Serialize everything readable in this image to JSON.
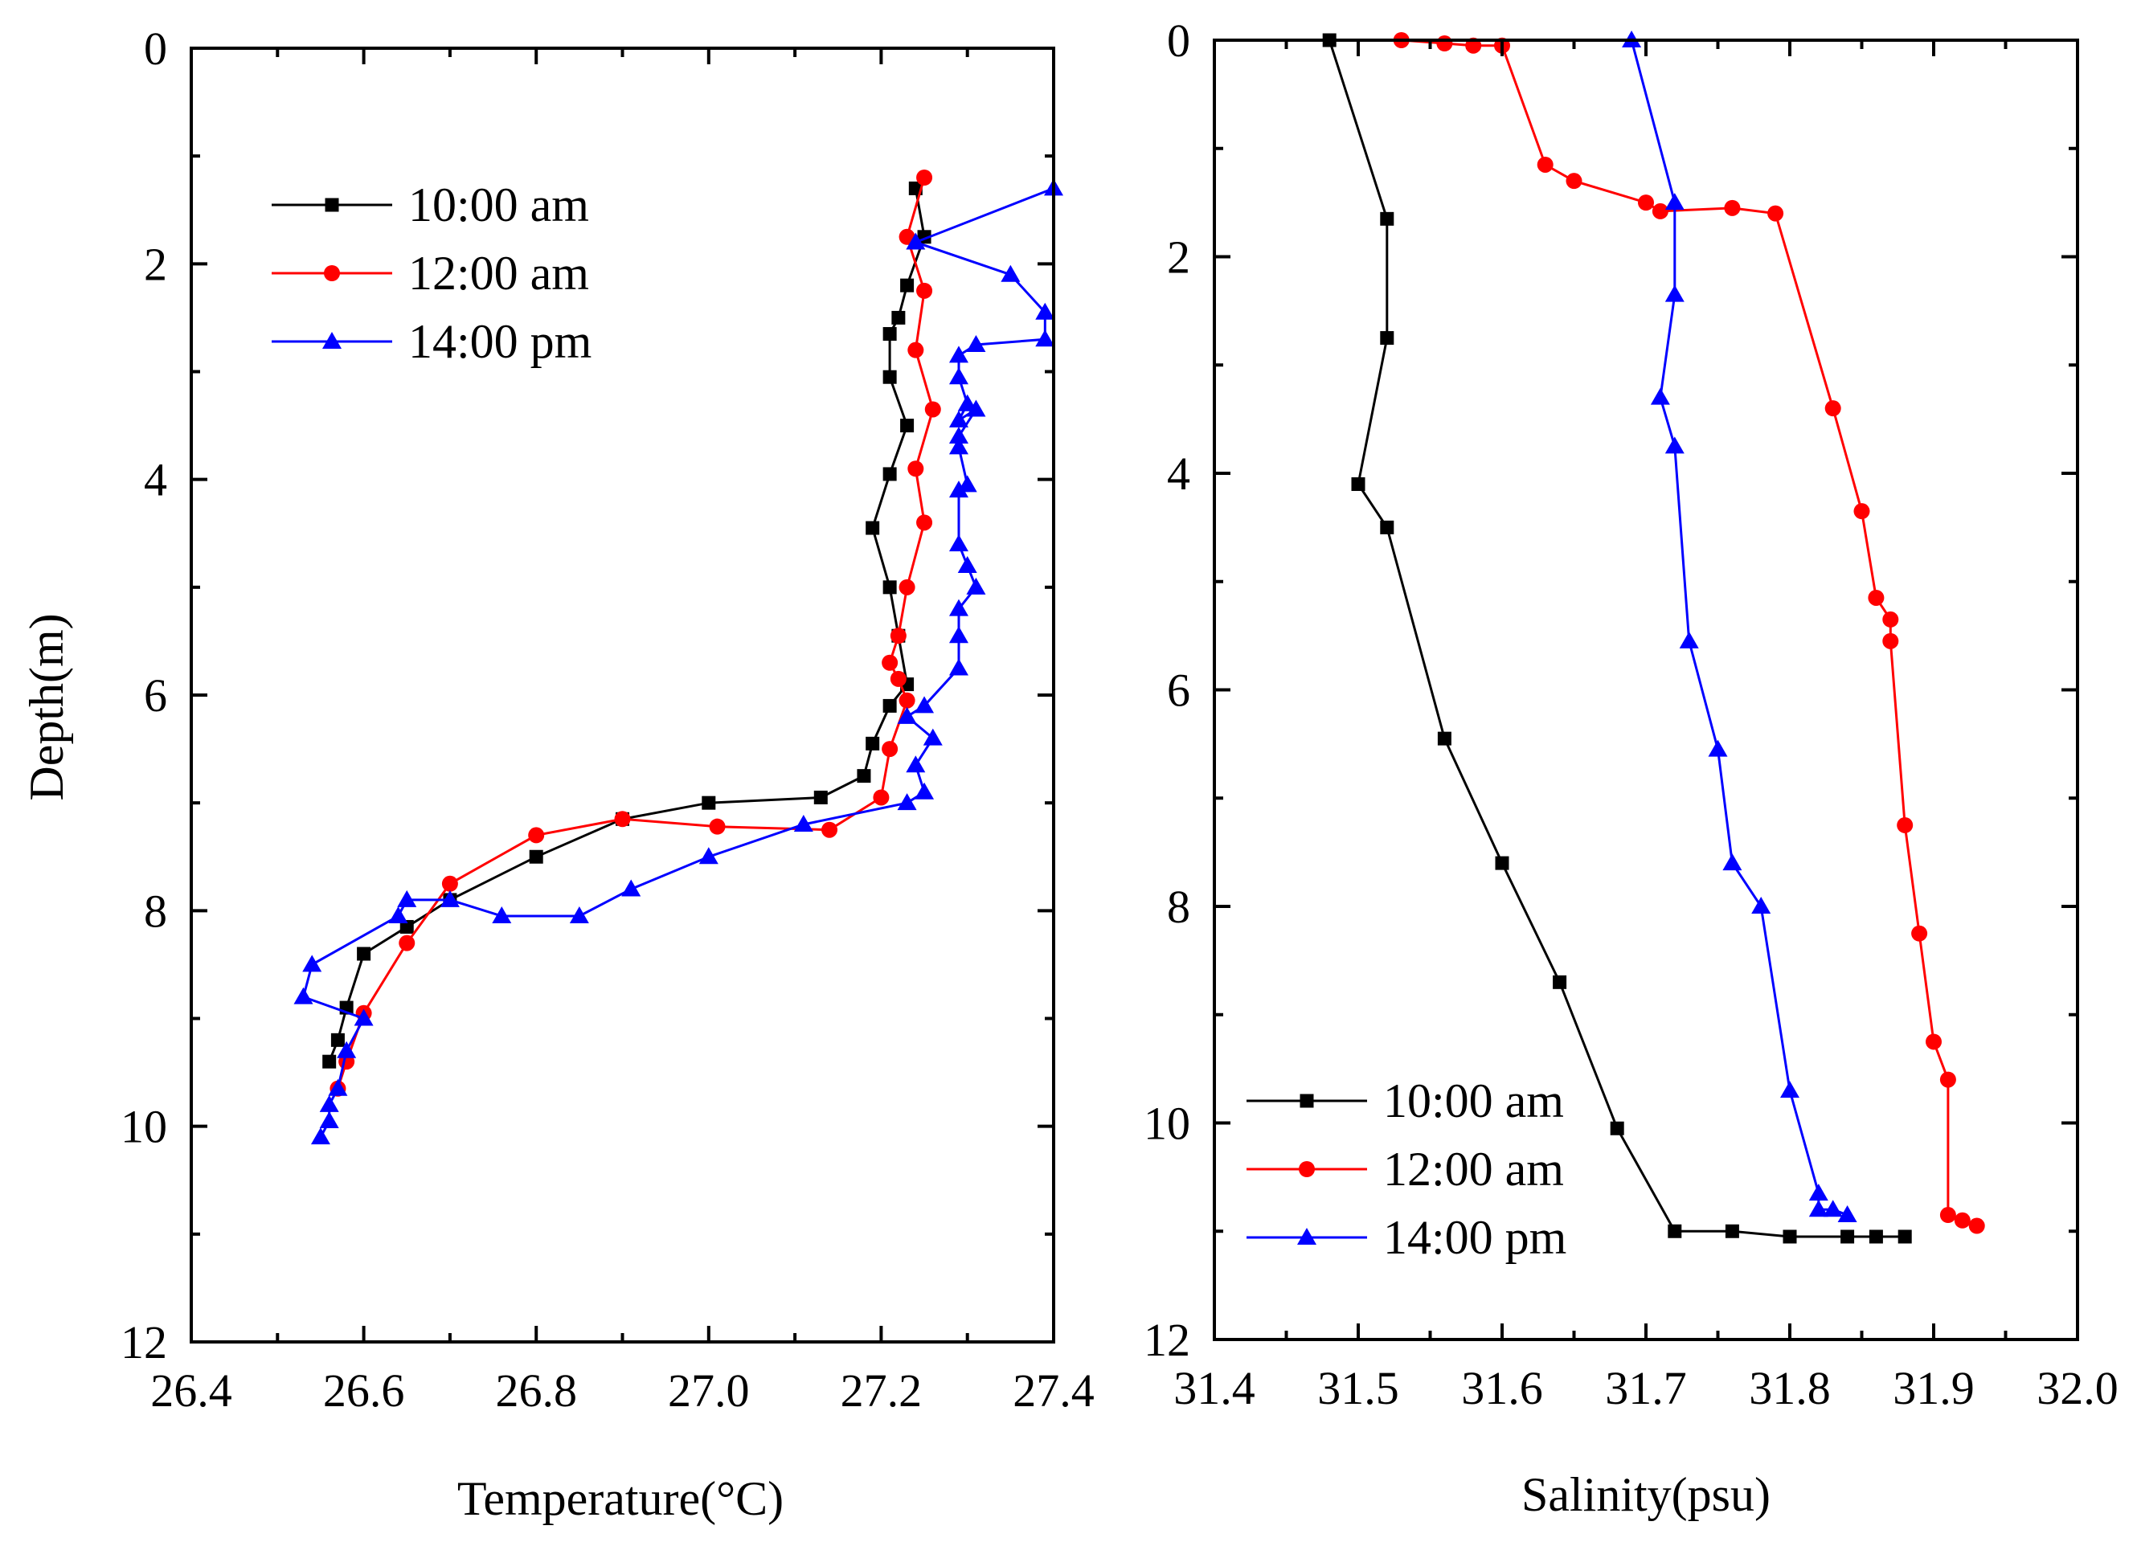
{
  "chart_data": [
    {
      "type": "line",
      "xlabel": "Temperature(°C)",
      "ylabel": "Depth(m)",
      "xlim": [
        26.4,
        27.4
      ],
      "ylim": [
        12,
        0
      ],
      "y_inverted": true,
      "xticks": [
        "26.4",
        "26.6",
        "26.8",
        "27.0",
        "27.2",
        "27.4"
      ],
      "yticks": [
        "0",
        "2",
        "4",
        "6",
        "8",
        "10",
        "12"
      ],
      "legend_position": "top-left",
      "series": [
        {
          "name": "10:00 am",
          "color": "#000000",
          "marker": "square",
          "x": [
            27.24,
            27.25,
            27.23,
            27.22,
            27.21,
            27.21,
            27.23,
            27.21,
            27.19,
            27.21,
            27.22,
            27.23,
            27.21,
            27.19,
            27.18,
            27.13,
            27.0,
            26.9,
            26.8,
            26.7,
            26.65,
            26.6,
            26.58,
            26.57,
            26.56
          ],
          "y": [
            1.3,
            1.75,
            2.2,
            2.5,
            2.65,
            3.05,
            3.5,
            3.95,
            4.45,
            5.0,
            5.45,
            5.9,
            6.1,
            6.45,
            6.75,
            6.95,
            7.0,
            7.15,
            7.5,
            7.9,
            8.15,
            8.4,
            8.9,
            9.2,
            9.4
          ]
        },
        {
          "name": "12:00 am",
          "color": "#ff0000",
          "marker": "circle",
          "x": [
            27.25,
            27.23,
            27.25,
            27.24,
            27.26,
            27.24,
            27.25,
            27.23,
            27.22,
            27.21,
            27.22,
            27.23,
            27.21,
            27.2,
            27.14,
            27.01,
            26.9,
            26.8,
            26.7,
            26.65,
            26.6,
            26.58,
            26.57
          ],
          "y": [
            1.2,
            1.75,
            2.25,
            2.8,
            3.35,
            3.9,
            4.4,
            5.0,
            5.45,
            5.7,
            5.85,
            6.05,
            6.5,
            6.95,
            7.25,
            7.22,
            7.15,
            7.3,
            7.75,
            8.3,
            8.95,
            9.4,
            9.65
          ]
        },
        {
          "name": "14:00 pm",
          "color": "#0000ff",
          "marker": "triangle",
          "x": [
            27.4,
            27.24,
            27.35,
            27.39,
            27.39,
            27.31,
            27.29,
            27.29,
            27.3,
            27.29,
            27.31,
            27.29,
            27.29,
            27.3,
            27.29,
            27.29,
            27.3,
            27.31,
            27.29,
            27.29,
            27.29,
            27.25,
            27.23,
            27.26,
            27.24,
            27.25,
            27.23,
            27.11,
            27.0,
            26.91,
            26.85,
            26.76,
            26.7,
            26.65,
            26.64,
            26.54,
            26.53,
            26.6,
            26.58,
            26.57,
            26.56,
            26.56,
            26.55
          ],
          "y": [
            1.3,
            1.8,
            2.1,
            2.45,
            2.7,
            2.75,
            2.85,
            3.05,
            3.3,
            3.45,
            3.35,
            3.6,
            3.7,
            4.05,
            4.1,
            4.6,
            4.8,
            5.0,
            5.2,
            5.45,
            5.75,
            6.1,
            6.2,
            6.4,
            6.65,
            6.9,
            7.0,
            7.2,
            7.5,
            7.8,
            8.05,
            8.05,
            7.9,
            7.9,
            8.05,
            8.5,
            8.8,
            9.0,
            9.3,
            9.65,
            9.8,
            9.95,
            10.1
          ]
        }
      ]
    },
    {
      "type": "line",
      "xlabel": "Salinity(psu)",
      "ylabel": "",
      "xlim": [
        31.4,
        32.0
      ],
      "ylim": [
        12,
        0
      ],
      "y_inverted": true,
      "xticks": [
        "31.4",
        "31.5",
        "31.6",
        "31.7",
        "31.8",
        "31.9",
        "32.0"
      ],
      "yticks": [
        "0",
        "2",
        "4",
        "6",
        "8",
        "10",
        "12"
      ],
      "legend_position": "bottom-left",
      "series": [
        {
          "name": "10:00 am",
          "color": "#000000",
          "marker": "square",
          "x": [
            31.48,
            31.52,
            31.52,
            31.5,
            31.52,
            31.56,
            31.6,
            31.64,
            31.68,
            31.72,
            31.76,
            31.8,
            31.84,
            31.86,
            31.88
          ],
          "y": [
            0.0,
            1.65,
            2.75,
            4.1,
            4.5,
            6.45,
            7.6,
            8.7,
            10.05,
            11.0,
            11.0,
            11.05,
            11.05,
            11.05,
            11.05
          ]
        },
        {
          "name": "12:00 am",
          "color": "#ff0000",
          "marker": "circle",
          "x": [
            31.53,
            31.56,
            31.58,
            31.6,
            31.63,
            31.65,
            31.7,
            31.71,
            31.76,
            31.79,
            31.83,
            31.85,
            31.86,
            31.87,
            31.87,
            31.88,
            31.89,
            31.9,
            31.91,
            31.91,
            31.92,
            31.93
          ],
          "y": [
            0.0,
            0.03,
            0.05,
            0.05,
            1.15,
            1.3,
            1.5,
            1.58,
            1.55,
            1.6,
            3.4,
            4.35,
            5.15,
            5.35,
            5.55,
            7.25,
            8.25,
            9.25,
            9.6,
            10.85,
            10.9,
            10.95
          ]
        },
        {
          "name": "14:00 pm",
          "color": "#0000ff",
          "marker": "triangle",
          "x": [
            31.69,
            31.72,
            31.72,
            31.71,
            31.72,
            31.73,
            31.75,
            31.76,
            31.78,
            31.8,
            31.82,
            31.82,
            31.83,
            31.84
          ],
          "y": [
            0.0,
            1.5,
            2.35,
            3.3,
            3.75,
            5.55,
            6.55,
            7.6,
            8.0,
            9.7,
            10.65,
            10.8,
            10.8,
            10.85
          ]
        }
      ]
    }
  ]
}
